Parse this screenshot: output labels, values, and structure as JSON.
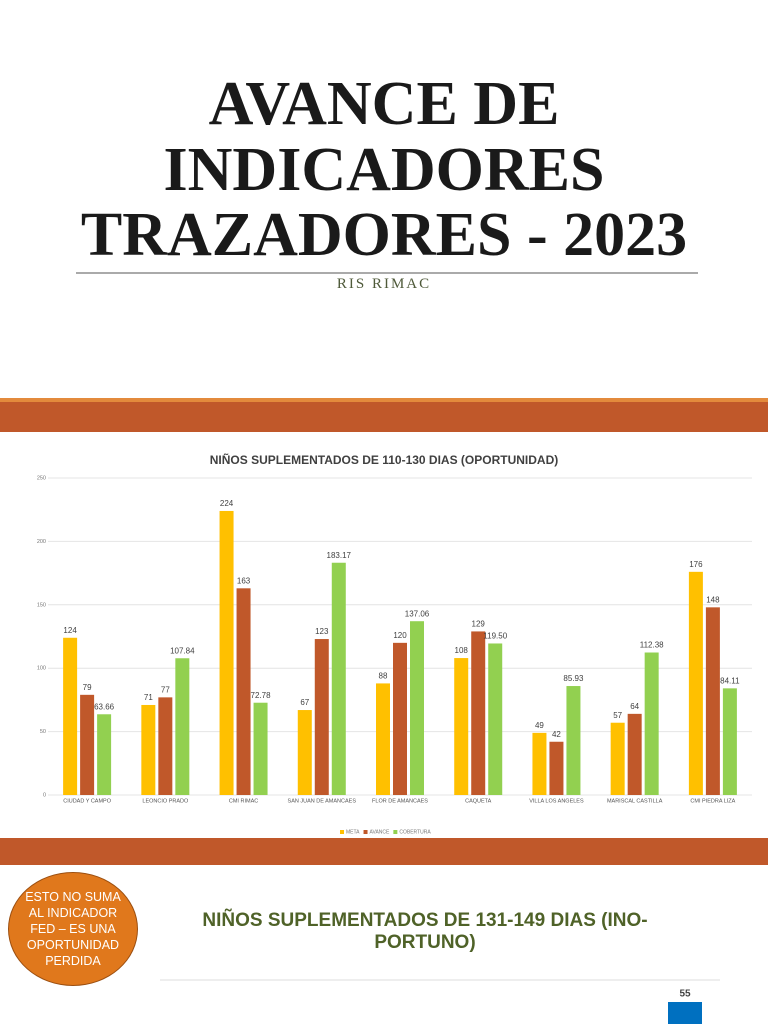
{
  "header": {
    "title_lines": [
      "AVANCE DE",
      "INDICADORES",
      "TRAZADORES - 2023"
    ],
    "subtitle": "RIS RIMAC"
  },
  "callout": "ESTO NO SUMA AL INDICADOR FED – ES UNA OPORTUNIDAD PERDIDA",
  "chart_data": [
    {
      "type": "bar",
      "title": "NIÑOS SUPLEMENTADOS DE 110-130 DIAS (OPORTUNIDAD)",
      "categories": [
        "CIUDAD Y CAMPO",
        "LEONCIO PRADO",
        "CMI RIMAC",
        "SAN JUAN DE AMANCAES",
        "FLOR DE AMANCAES",
        "CAQUETA",
        "VILLA LOS ANGELES",
        "MARISCAL CASTILLA",
        "CMI PIEDRA LIZA"
      ],
      "series": [
        {
          "name": "META",
          "color": "#ffc000",
          "values": [
            124,
            71,
            224,
            67,
            88,
            108,
            49,
            57,
            176
          ]
        },
        {
          "name": "AVANCE",
          "color": "#c0582a",
          "values": [
            79,
            77,
            163,
            123,
            120,
            129,
            42,
            64,
            148
          ]
        },
        {
          "name": "COBERTURA",
          "color": "#92d050",
          "values": [
            63.66,
            107.84,
            72.78,
            183.17,
            137.06,
            119.5,
            85.93,
            112.38,
            84.11
          ],
          "value_labels": [
            "63.66",
            "107.84",
            "72.78",
            "183.17",
            "137.06",
            "119.50",
            "85.93",
            "112.38",
            "84.11"
          ]
        }
      ],
      "ylim": [
        0,
        250
      ],
      "yticks": [
        0,
        50,
        100,
        150,
        200,
        250
      ],
      "grid": true,
      "legend": "bottom"
    },
    {
      "type": "bar",
      "title": "NIÑOS SUPLEMENTADOS DE 131-149 DIAS (INO-PORTUNO)",
      "categories": [
        null
      ],
      "values": [
        55
      ],
      "color": "#0070c0"
    }
  ]
}
